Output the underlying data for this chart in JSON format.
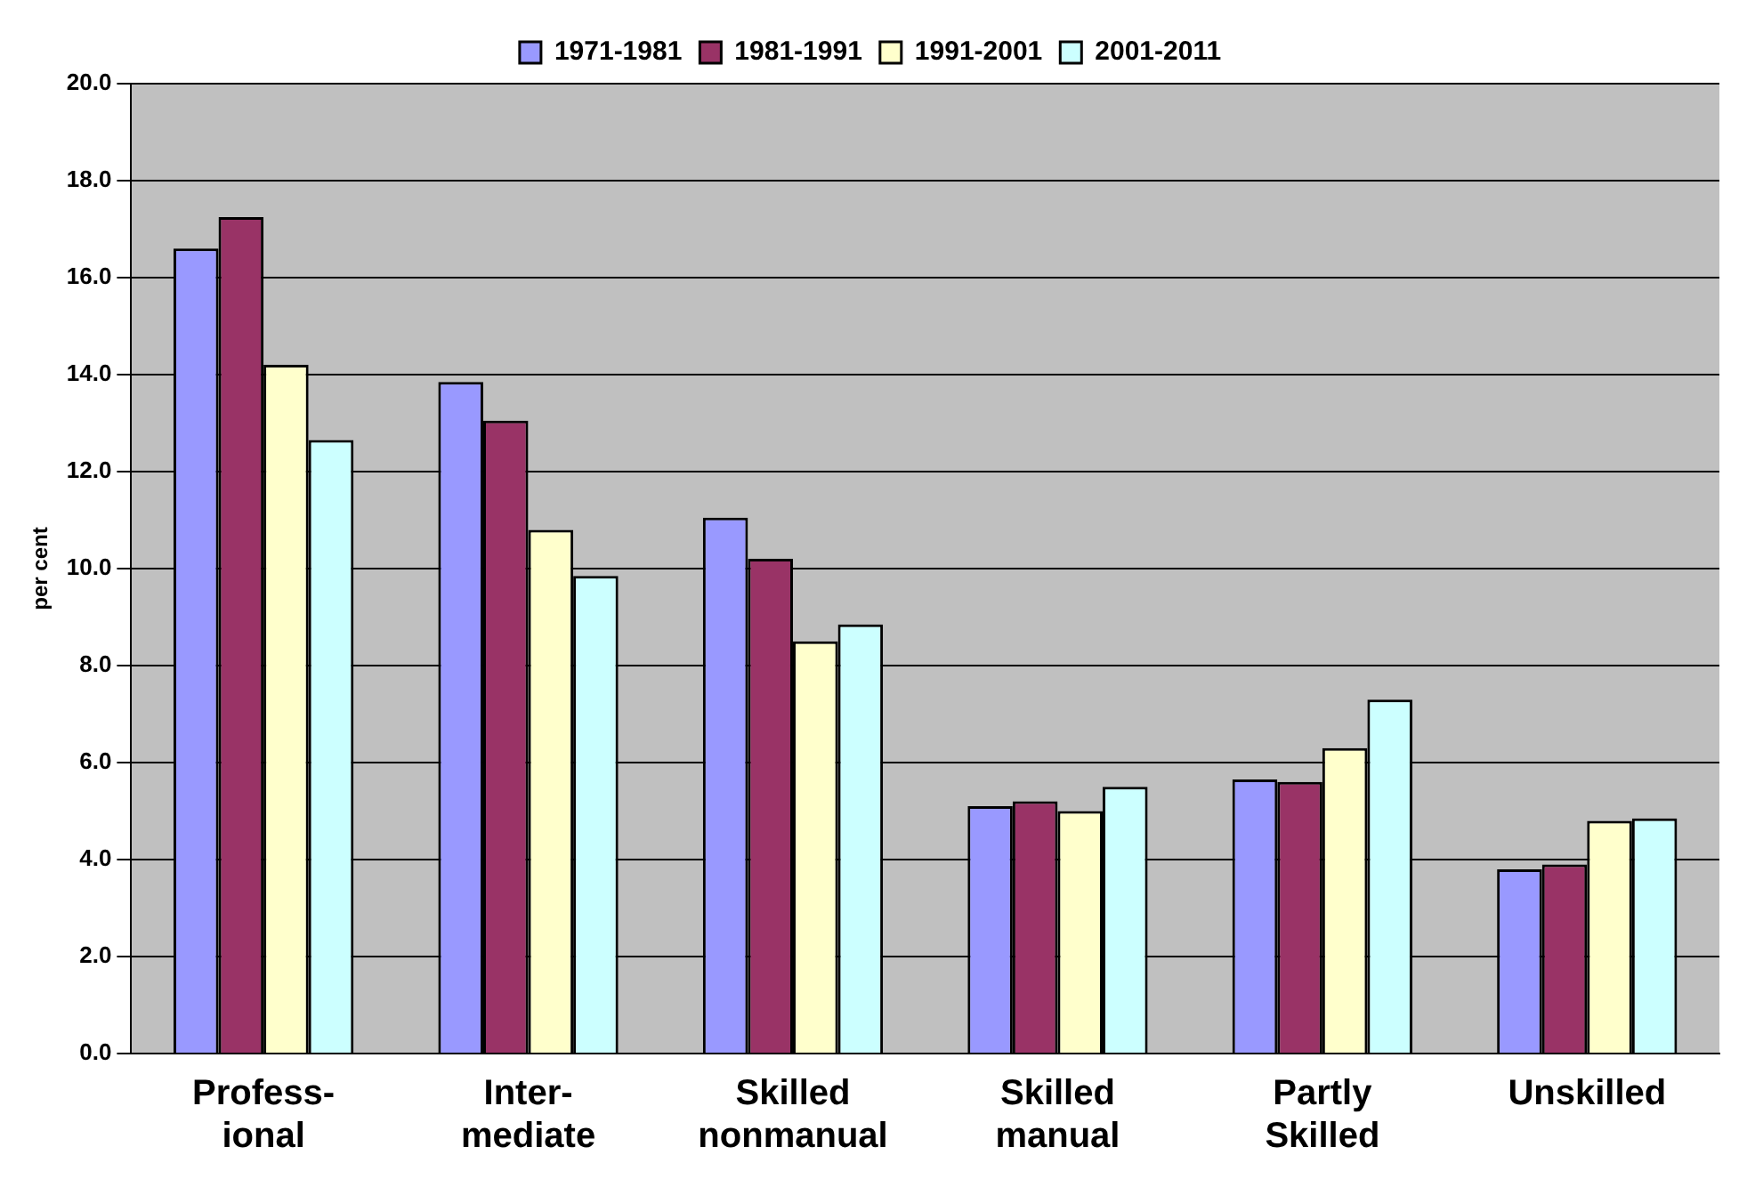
{
  "chart_data": {
    "type": "bar",
    "ylabel": "per cent",
    "categories": [
      "Profess-\nional",
      "Inter-\nmediate",
      "Skilled\nnonmanual",
      "Skilled\nmanual",
      "Partly\nSkilled",
      "Unskilled"
    ],
    "series": [
      {
        "name": "1971-1981",
        "color": "#9999ff",
        "values": [
          16.6,
          13.85,
          11.05,
          5.1,
          5.65,
          3.8
        ]
      },
      {
        "name": "1981-1991",
        "color": "#993366",
        "values": [
          17.25,
          13.05,
          10.2,
          5.2,
          5.6,
          3.9
        ]
      },
      {
        "name": "1991-2001",
        "color": "#ffffcc",
        "values": [
          14.2,
          10.8,
          8.5,
          5.0,
          6.3,
          4.8
        ]
      },
      {
        "name": "2001-2011",
        "color": "#ccffff",
        "values": [
          12.65,
          9.85,
          8.85,
          5.5,
          7.3,
          4.85
        ]
      }
    ],
    "ylim": [
      0,
      20
    ],
    "yticks": [
      {
        "value": 0,
        "label": "0.0"
      },
      {
        "value": 2,
        "label": "2.0"
      },
      {
        "value": 4,
        "label": "4.0"
      },
      {
        "value": 6,
        "label": "6.0"
      },
      {
        "value": 8,
        "label": "8.0"
      },
      {
        "value": 10,
        "label": "10.0"
      },
      {
        "value": 12,
        "label": "12.0"
      },
      {
        "value": 14,
        "label": "14.0"
      },
      {
        "value": 16,
        "label": "16.0"
      },
      {
        "value": 18,
        "label": "18.0"
      },
      {
        "value": 20,
        "label": "20.0"
      }
    ],
    "grid": "y",
    "legend": "top"
  }
}
